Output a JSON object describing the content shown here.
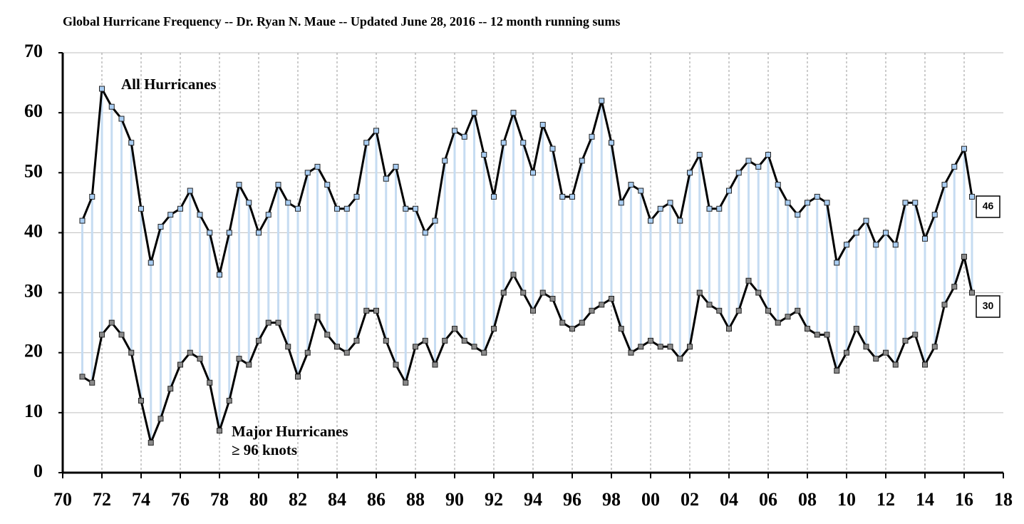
{
  "chart_data": {
    "type": "line",
    "title": "Global Hurricane Frequency -- Dr. Ryan N. Maue -- Updated June 28, 2016 -- 12 month running sums",
    "x": [
      1971,
      1971.5,
      1972,
      1972.5,
      1973,
      1973.5,
      1974,
      1974.5,
      1975,
      1975.5,
      1976,
      1976.5,
      1977,
      1977.5,
      1978,
      1978.5,
      1979,
      1979.5,
      1980,
      1980.5,
      1981,
      1981.5,
      1982,
      1982.5,
      1983,
      1983.5,
      1984,
      1984.5,
      1985,
      1985.5,
      1986,
      1986.5,
      1987,
      1987.5,
      1988,
      1988.5,
      1989,
      1989.5,
      1990,
      1990.5,
      1991,
      1991.5,
      1992,
      1992.5,
      1993,
      1993.5,
      1994,
      1994.5,
      1995,
      1995.5,
      1996,
      1996.5,
      1997,
      1997.5,
      1998,
      1998.5,
      1999,
      1999.5,
      2000,
      2000.5,
      2001,
      2001.5,
      2002,
      2002.5,
      2003,
      2003.5,
      2004,
      2004.5,
      2005,
      2005.5,
      2006,
      2006.5,
      2007,
      2007.5,
      2008,
      2008.5,
      2009,
      2009.5,
      2010,
      2010.5,
      2011,
      2011.5,
      2012,
      2012.5,
      2013,
      2013.5,
      2014,
      2014.5,
      2015,
      2015.5,
      2016,
      2016.4
    ],
    "series": [
      {
        "name": "All Hurricanes",
        "color": "#000000",
        "marker_color": "#a9cdf2",
        "last_label": 46,
        "values": [
          42,
          46,
          64,
          61,
          59,
          55,
          44,
          35,
          41,
          43,
          44,
          47,
          43,
          40,
          33,
          40,
          48,
          45,
          40,
          43,
          48,
          45,
          44,
          50,
          51,
          48,
          44,
          44,
          46,
          55,
          57,
          49,
          51,
          44,
          44,
          40,
          42,
          52,
          57,
          56,
          60,
          53,
          46,
          55,
          60,
          55,
          50,
          58,
          54,
          46,
          46,
          52,
          56,
          62,
          55,
          45,
          48,
          47,
          42,
          44,
          45,
          42,
          50,
          53,
          44,
          44,
          47,
          50,
          52,
          51,
          53,
          48,
          45,
          43,
          45,
          46,
          45,
          35,
          38,
          40,
          42,
          38,
          40,
          38,
          45,
          45,
          39,
          43,
          48,
          51,
          54,
          46
        ]
      },
      {
        "name": "Major Hurricanes",
        "name2": "≥ 96 knots",
        "color": "#000000",
        "marker_color": "#8a8a8a",
        "last_label": 30,
        "values": [
          16,
          15,
          23,
          25,
          23,
          20,
          12,
          5,
          9,
          14,
          18,
          20,
          19,
          15,
          7,
          12,
          19,
          18,
          22,
          25,
          25,
          21,
          16,
          20,
          26,
          23,
          21,
          20,
          22,
          27,
          27,
          22,
          18,
          15,
          21,
          22,
          18,
          22,
          24,
          22,
          21,
          20,
          24,
          30,
          33,
          30,
          27,
          30,
          29,
          25,
          24,
          25,
          27,
          28,
          29,
          24,
          20,
          21,
          22,
          21,
          21,
          19,
          21,
          30,
          28,
          27,
          24,
          27,
          32,
          30,
          27,
          25,
          26,
          27,
          24,
          23,
          23,
          17,
          20,
          24,
          21,
          19,
          20,
          18,
          22,
          23,
          18,
          21,
          28,
          31,
          36,
          30
        ]
      }
    ],
    "fill_color": "#c6dcf2",
    "xlim": [
      1970,
      2018
    ],
    "xticks": [
      {
        "value": 1970,
        "label": "70"
      },
      {
        "value": 1972,
        "label": "72"
      },
      {
        "value": 1974,
        "label": "74"
      },
      {
        "value": 1976,
        "label": "76"
      },
      {
        "value": 1978,
        "label": "78"
      },
      {
        "value": 1980,
        "label": "80"
      },
      {
        "value": 1982,
        "label": "82"
      },
      {
        "value": 1984,
        "label": "84"
      },
      {
        "value": 1986,
        "label": "86"
      },
      {
        "value": 1988,
        "label": "88"
      },
      {
        "value": 1990,
        "label": "90"
      },
      {
        "value": 1992,
        "label": "92"
      },
      {
        "value": 1994,
        "label": "94"
      },
      {
        "value": 1996,
        "label": "96"
      },
      {
        "value": 1998,
        "label": "98"
      },
      {
        "value": 2000,
        "label": "00"
      },
      {
        "value": 2002,
        "label": "02"
      },
      {
        "value": 2004,
        "label": "04"
      },
      {
        "value": 2006,
        "label": "06"
      },
      {
        "value": 2008,
        "label": "08"
      },
      {
        "value": 2010,
        "label": "10"
      },
      {
        "value": 2012,
        "label": "12"
      },
      {
        "value": 2014,
        "label": "14"
      },
      {
        "value": 2016,
        "label": "16"
      },
      {
        "value": 2018,
        "label": "18"
      }
    ],
    "ylim": [
      0,
      70
    ],
    "yticks": [
      0,
      10,
      20,
      30,
      40,
      50,
      60,
      70
    ],
    "grid": true
  }
}
